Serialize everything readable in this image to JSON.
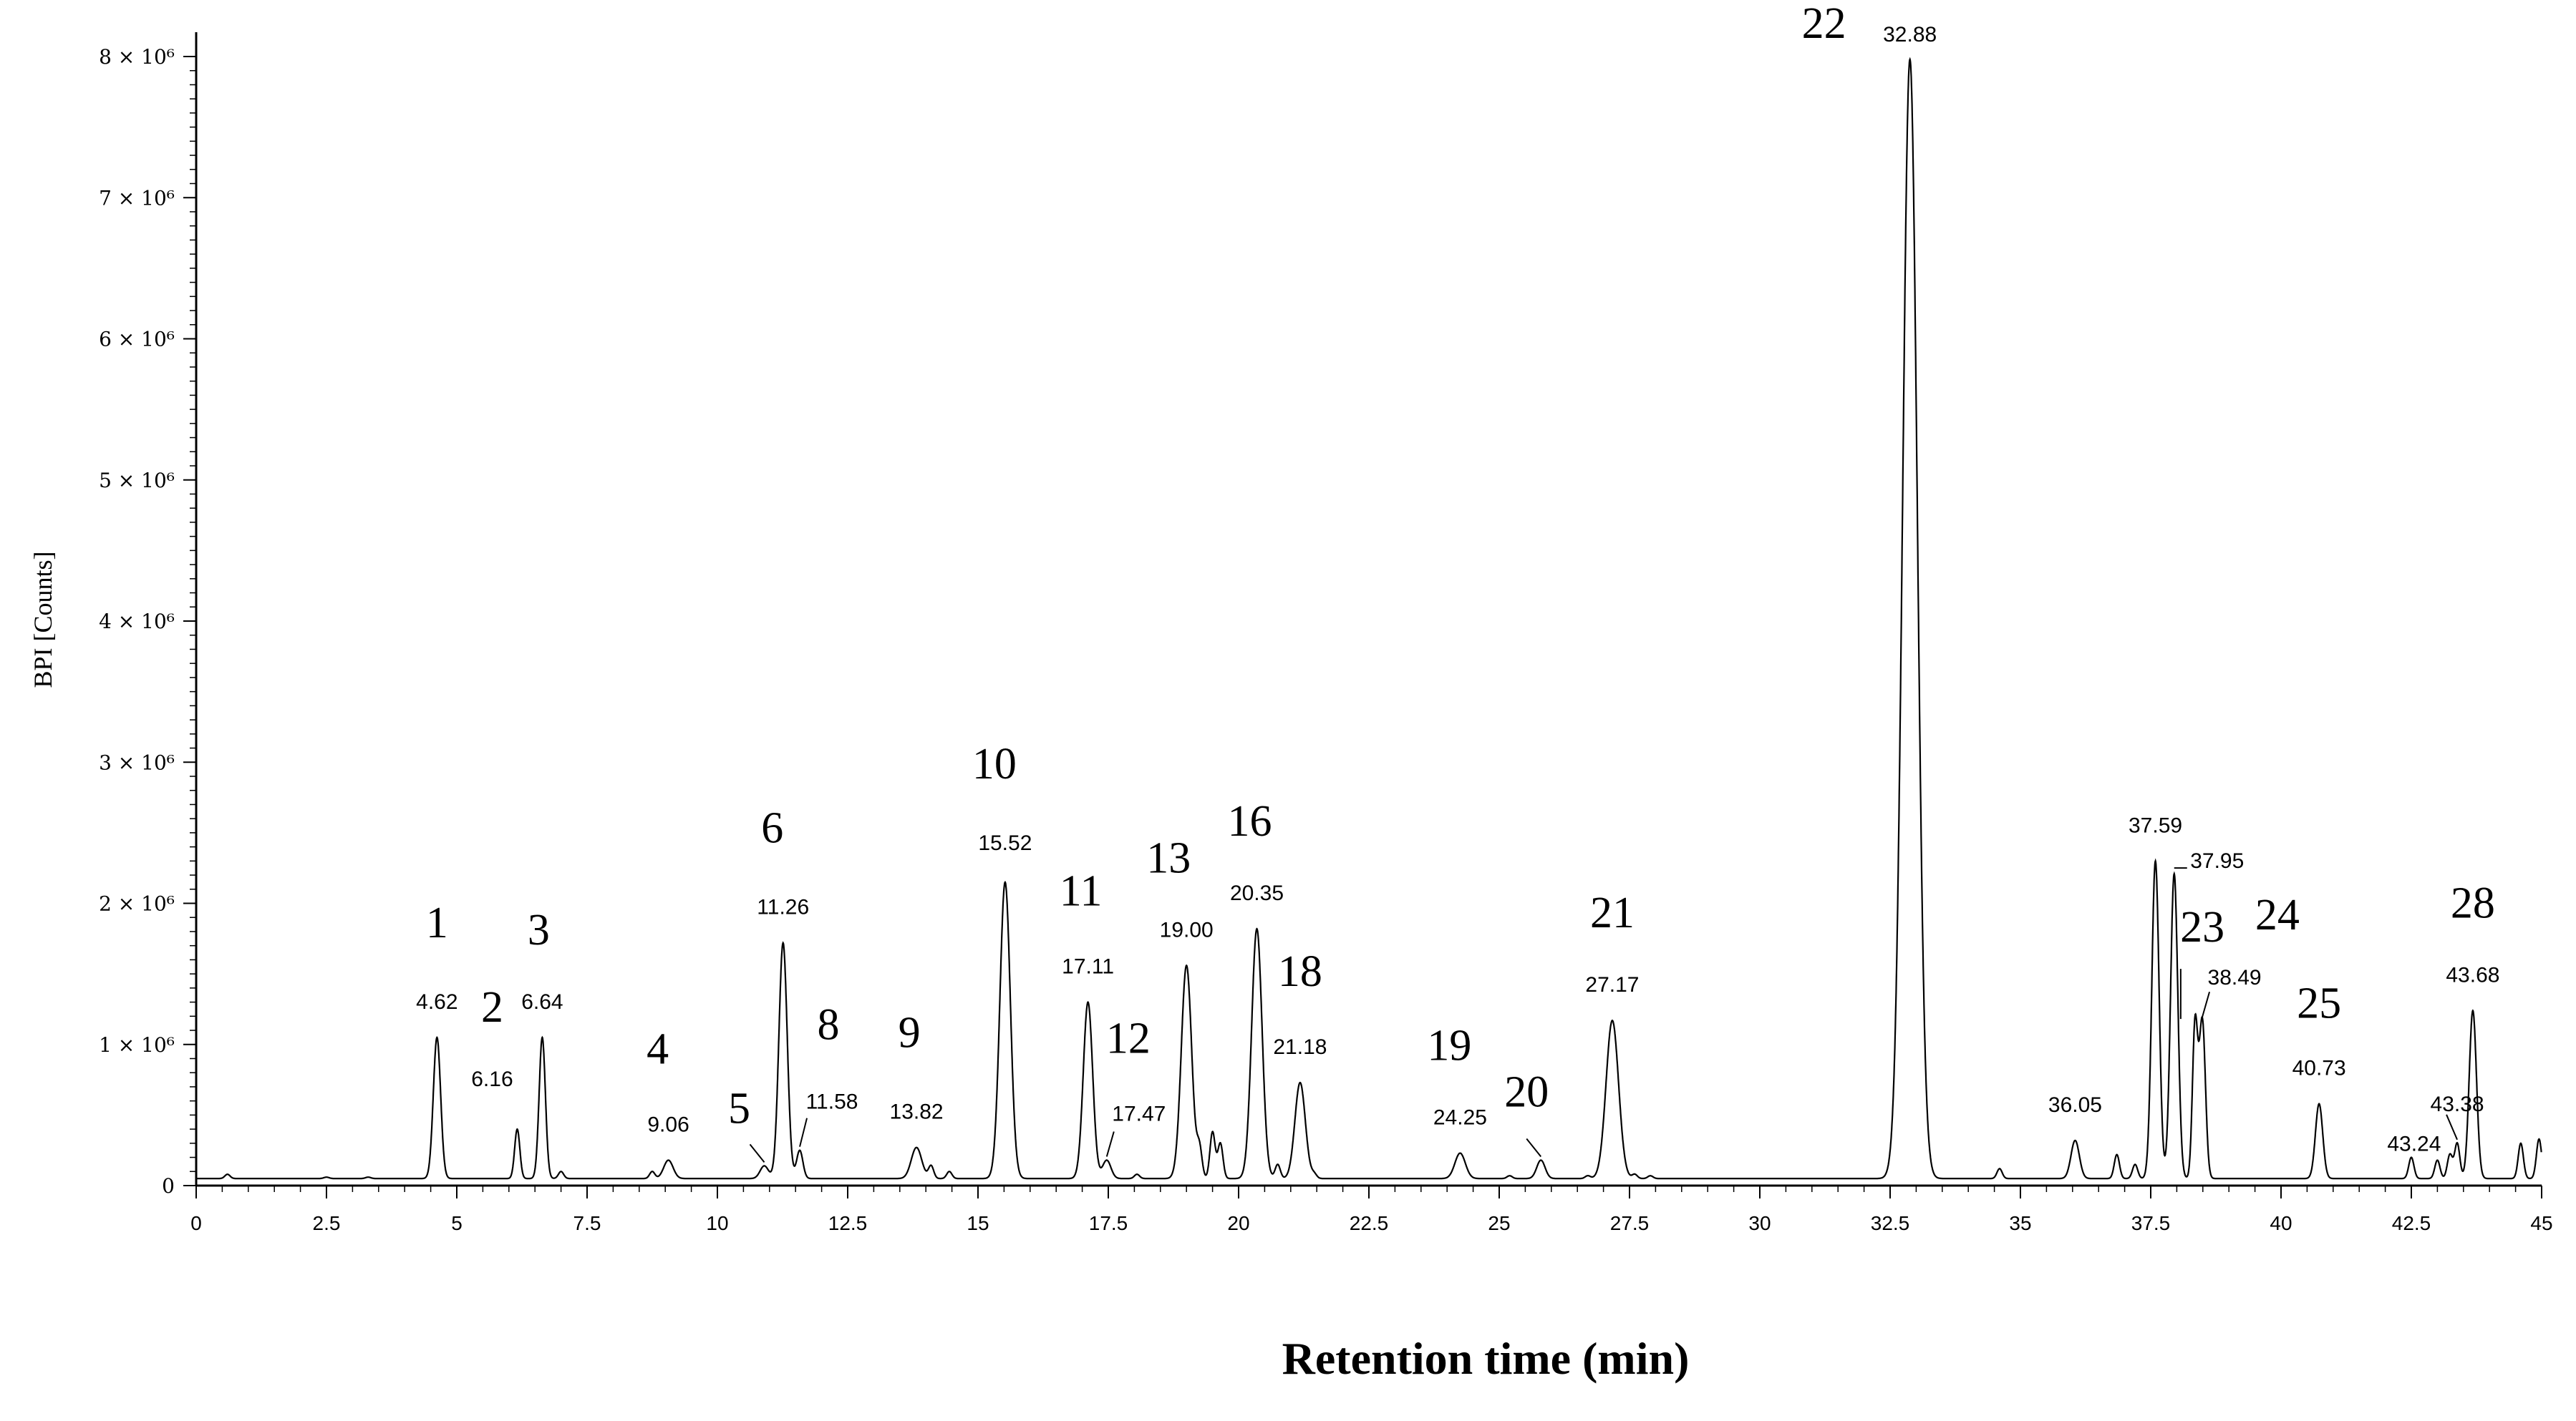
{
  "chart_data": {
    "type": "line",
    "title": "",
    "xlabel": "Retention time (min)",
    "ylabel": "BPI [Counts]",
    "xlim": [
      0,
      45
    ],
    "ylim": [
      0,
      8000000
    ],
    "x_ticks": [
      "0",
      "2.5",
      "5",
      "7.5",
      "10",
      "12.5",
      "15",
      "17.5",
      "20",
      "22.5",
      "25",
      "27.5",
      "30",
      "32.5",
      "35",
      "37.5",
      "40",
      "42.5",
      "45"
    ],
    "y_ticks": [
      "0",
      "1 × 10⁶",
      "2 × 10⁶",
      "3 × 10⁶",
      "4 × 10⁶",
      "5 × 10⁶",
      "6 × 10⁶",
      "7 × 10⁶",
      "8 × 10⁶"
    ],
    "baseline": 50000,
    "peaks": [
      {
        "num": "1",
        "rt": "4.62",
        "x": 4.62,
        "y": 1050000,
        "w": 0.07
      },
      {
        "num": "2",
        "rt": "6.16",
        "x": 6.16,
        "y": 400000,
        "w": 0.05
      },
      {
        "num": "3",
        "rt": "6.64",
        "x": 6.64,
        "y": 1050000,
        "w": 0.06
      },
      {
        "num": "4",
        "rt": "9.06",
        "x": 9.06,
        "y": 180000,
        "w": 0.09
      },
      {
        "num": "5",
        "rt": "",
        "x": 10.9,
        "y": 140000,
        "w": 0.08
      },
      {
        "num": "6",
        "rt": "11.26",
        "x": 11.26,
        "y": 1720000,
        "w": 0.08
      },
      {
        "num": "8",
        "rt": "11.58",
        "x": 11.58,
        "y": 250000,
        "w": 0.06
      },
      {
        "num": "9",
        "rt": "13.82",
        "x": 13.82,
        "y": 270000,
        "w": 0.1
      },
      {
        "num": "10",
        "rt": "15.52",
        "x": 15.52,
        "y": 2150000,
        "w": 0.1
      },
      {
        "num": "11",
        "rt": "17.11",
        "x": 17.11,
        "y": 1300000,
        "w": 0.09
      },
      {
        "num": "12",
        "rt": "17.47",
        "x": 17.47,
        "y": 180000,
        "w": 0.08
      },
      {
        "num": "13",
        "rt": "19.00",
        "x": 19.0,
        "y": 1560000,
        "w": 0.1
      },
      {
        "num": "16",
        "rt": "20.35",
        "x": 20.35,
        "y": 1820000,
        "w": 0.1
      },
      {
        "num": "18",
        "rt": "21.18",
        "x": 21.18,
        "y": 730000,
        "w": 0.1
      },
      {
        "num": "19",
        "rt": "24.25",
        "x": 24.25,
        "y": 230000,
        "w": 0.1
      },
      {
        "num": "20",
        "rt": "",
        "x": 25.8,
        "y": 180000,
        "w": 0.08
      },
      {
        "num": "21",
        "rt": "27.17",
        "x": 27.17,
        "y": 1170000,
        "w": 0.12
      },
      {
        "num": "22",
        "rt": "32.88",
        "x": 32.88,
        "y": 7980000,
        "w": 0.14
      },
      {
        "num": "",
        "rt": "36.05",
        "x": 36.05,
        "y": 320000,
        "w": 0.08
      },
      {
        "num": "",
        "rt": "37.59",
        "x": 37.59,
        "y": 2300000,
        "w": 0.07
      },
      {
        "num": "",
        "rt": "37.95",
        "x": 37.95,
        "y": 2210000,
        "w": 0.07
      },
      {
        "num": "23",
        "rt": "38.49",
        "x": 38.49,
        "y": 1170000,
        "w": 0.06
      },
      {
        "num": "24",
        "rt": "",
        "x": 38.35,
        "y": 1130000,
        "w": 0.05
      },
      {
        "num": "25",
        "rt": "40.73",
        "x": 40.73,
        "y": 580000,
        "w": 0.07
      },
      {
        "num": "",
        "rt": "43.24",
        "x": 43.24,
        "y": 220000,
        "w": 0.05
      },
      {
        "num": "",
        "rt": "43.38",
        "x": 43.38,
        "y": 300000,
        "w": 0.05
      },
      {
        "num": "28",
        "rt": "43.68",
        "x": 43.68,
        "y": 1240000,
        "w": 0.07
      }
    ],
    "minor_peaks": [
      {
        "x": 0.6,
        "y": 80000
      },
      {
        "x": 2.5,
        "y": 60000
      },
      {
        "x": 3.3,
        "y": 60000
      },
      {
        "x": 7.0,
        "y": 100000
      },
      {
        "x": 8.75,
        "y": 100000
      },
      {
        "x": 14.1,
        "y": 140000
      },
      {
        "x": 14.45,
        "y": 100000
      },
      {
        "x": 18.05,
        "y": 80000
      },
      {
        "x": 19.25,
        "y": 250000
      },
      {
        "x": 19.5,
        "y": 380000
      },
      {
        "x": 19.65,
        "y": 300000
      },
      {
        "x": 20.75,
        "y": 150000
      },
      {
        "x": 21.45,
        "y": 80000
      },
      {
        "x": 25.2,
        "y": 70000
      },
      {
        "x": 26.7,
        "y": 70000
      },
      {
        "x": 27.6,
        "y": 80000
      },
      {
        "x": 27.9,
        "y": 70000
      },
      {
        "x": 34.6,
        "y": 120000
      },
      {
        "x": 36.85,
        "y": 220000
      },
      {
        "x": 37.2,
        "y": 150000
      },
      {
        "x": 42.5,
        "y": 200000
      },
      {
        "x": 43.0,
        "y": 180000
      },
      {
        "x": 44.6,
        "y": 300000
      },
      {
        "x": 44.95,
        "y": 330000
      }
    ]
  }
}
